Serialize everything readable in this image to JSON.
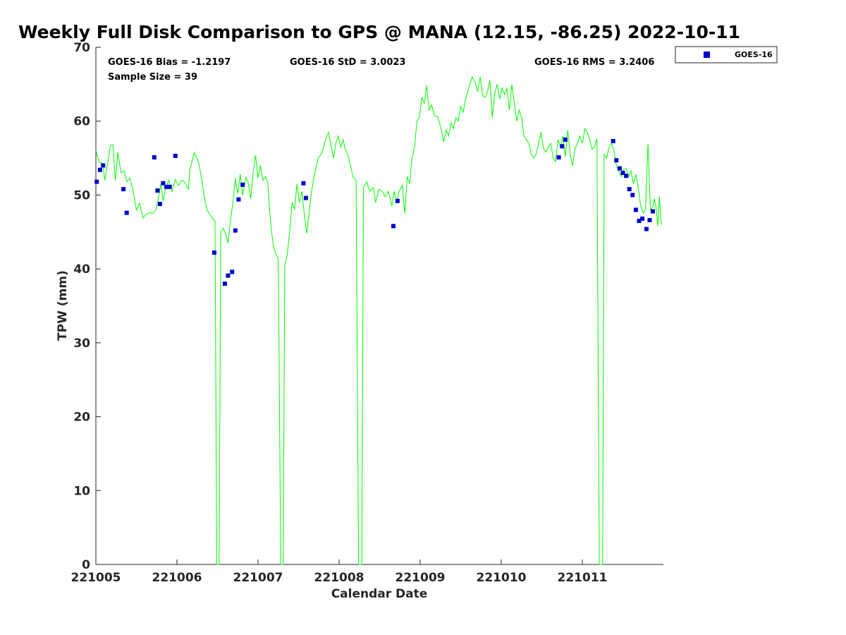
{
  "chart_data": {
    "type": "scatter",
    "title": "Weekly Full Disk Comparison to GPS @ MANA (12.15, -86.25) 2022-10-11",
    "xlabel": "Calendar Date",
    "ylabel": "TPW (mm)",
    "xlim": [
      0,
      7
    ],
    "ylim": [
      0,
      70
    ],
    "x_tick_values": [
      0,
      1,
      2,
      3,
      4,
      5,
      6
    ],
    "x_tick_labels": [
      "221005",
      "221006",
      "221007",
      "221008",
      "221009",
      "221010",
      "221011"
    ],
    "y_ticks": [
      0,
      10,
      20,
      30,
      40,
      50,
      60,
      70
    ],
    "grid": false,
    "legend_position": "outside-top-right",
    "stats": {
      "bias": "GOES-16 Bias = -1.2197",
      "sample": "Sample Size = 39",
      "std": "GOES-16 StD = 3.0023",
      "rms": "GOES-16 RMS = 3.2406"
    },
    "series": [
      {
        "name": "GOES-16",
        "kind": "scatter",
        "color": "#0000cc",
        "marker": "square",
        "points": [
          [
            0.01,
            51.8
          ],
          [
            0.05,
            53.4
          ],
          [
            0.09,
            54.0
          ],
          [
            0.34,
            50.8
          ],
          [
            0.38,
            47.6
          ],
          [
            0.72,
            55.1
          ],
          [
            0.76,
            50.6
          ],
          [
            0.79,
            48.8
          ],
          [
            0.83,
            51.6
          ],
          [
            0.87,
            51.1
          ],
          [
            0.91,
            51.1
          ],
          [
            0.98,
            55.3
          ],
          [
            1.46,
            42.2
          ],
          [
            1.59,
            38.0
          ],
          [
            1.63,
            39.1
          ],
          [
            1.68,
            39.6
          ],
          [
            1.72,
            45.2
          ],
          [
            1.76,
            49.4
          ],
          [
            1.81,
            51.4
          ],
          [
            2.56,
            51.6
          ],
          [
            2.59,
            49.6
          ],
          [
            3.67,
            45.8
          ],
          [
            3.72,
            49.2
          ],
          [
            5.71,
            55.1
          ],
          [
            5.75,
            56.6
          ],
          [
            5.79,
            57.5
          ],
          [
            6.38,
            57.3
          ],
          [
            6.42,
            54.7
          ],
          [
            6.46,
            53.6
          ],
          [
            6.5,
            53.0
          ],
          [
            6.54,
            52.6
          ],
          [
            6.58,
            50.8
          ],
          [
            6.62,
            50.0
          ],
          [
            6.66,
            48.0
          ],
          [
            6.7,
            46.5
          ],
          [
            6.74,
            46.8
          ],
          [
            6.79,
            45.4
          ],
          [
            6.83,
            46.6
          ],
          [
            6.87,
            47.8
          ]
        ]
      },
      {
        "kind": "line",
        "color": "#00ff00",
        "points": [
          [
            0.0,
            56.0
          ],
          [
            0.04,
            54.5
          ],
          [
            0.08,
            54.3
          ],
          [
            0.11,
            52.0
          ],
          [
            0.14,
            54.0
          ],
          [
            0.18,
            56.7
          ],
          [
            0.21,
            56.8
          ],
          [
            0.24,
            52.0
          ],
          [
            0.27,
            55.8
          ],
          [
            0.31,
            53.0
          ],
          [
            0.35,
            53.3
          ],
          [
            0.38,
            51.8
          ],
          [
            0.42,
            52.3
          ],
          [
            0.46,
            50.5
          ],
          [
            0.5,
            48.0
          ],
          [
            0.54,
            48.9
          ],
          [
            0.58,
            46.9
          ],
          [
            0.62,
            47.4
          ],
          [
            0.66,
            47.6
          ],
          [
            0.7,
            47.5
          ],
          [
            0.74,
            48.0
          ],
          [
            0.78,
            50.0
          ],
          [
            0.8,
            51.5
          ],
          [
            0.83,
            49.2
          ],
          [
            0.86,
            51.0
          ],
          [
            0.9,
            52.0
          ],
          [
            0.94,
            50.5
          ],
          [
            0.98,
            52.1
          ],
          [
            1.02,
            51.3
          ],
          [
            1.06,
            52.0
          ],
          [
            1.1,
            51.7
          ],
          [
            1.14,
            50.8
          ],
          [
            1.16,
            53.5
          ],
          [
            1.19,
            54.8
          ],
          [
            1.21,
            55.7
          ],
          [
            1.25,
            55.0
          ],
          [
            1.28,
            53.7
          ],
          [
            1.31,
            51.8
          ],
          [
            1.34,
            49.6
          ],
          [
            1.37,
            48.0
          ],
          [
            1.4,
            47.5
          ],
          [
            1.44,
            46.8
          ],
          [
            1.47,
            46.5
          ],
          [
            1.49,
            0.0
          ],
          [
            1.52,
            0.0
          ],
          [
            1.54,
            45.0
          ],
          [
            1.57,
            45.5
          ],
          [
            1.6,
            44.8
          ],
          [
            1.63,
            43.5
          ],
          [
            1.66,
            46.6
          ],
          [
            1.69,
            49.0
          ],
          [
            1.72,
            52.2
          ],
          [
            1.75,
            50.2
          ],
          [
            1.78,
            52.8
          ],
          [
            1.81,
            50.0
          ],
          [
            1.85,
            52.4
          ],
          [
            1.88,
            51.6
          ],
          [
            1.91,
            49.5
          ],
          [
            1.94,
            53.0
          ],
          [
            1.97,
            55.4
          ],
          [
            2.0,
            52.3
          ],
          [
            2.03,
            54.0
          ],
          [
            2.06,
            52.0
          ],
          [
            2.09,
            52.5
          ],
          [
            2.12,
            51.7
          ],
          [
            2.14,
            48.5
          ],
          [
            2.16,
            45.6
          ],
          [
            2.19,
            43.0
          ],
          [
            2.22,
            42.0
          ],
          [
            2.25,
            41.4
          ],
          [
            2.28,
            0.0
          ],
          [
            2.31,
            0.0
          ],
          [
            2.33,
            40.5
          ],
          [
            2.36,
            42.0
          ],
          [
            2.39,
            45.0
          ],
          [
            2.42,
            49.0
          ],
          [
            2.45,
            48.0
          ],
          [
            2.48,
            51.5
          ],
          [
            2.51,
            49.0
          ],
          [
            2.54,
            50.5
          ],
          [
            2.57,
            47.5
          ],
          [
            2.6,
            44.8
          ],
          [
            2.63,
            47.5
          ],
          [
            2.66,
            50.5
          ],
          [
            2.7,
            53.0
          ],
          [
            2.74,
            55.0
          ],
          [
            2.78,
            55.5
          ],
          [
            2.81,
            56.5
          ],
          [
            2.84,
            57.8
          ],
          [
            2.87,
            58.5
          ],
          [
            2.9,
            56.7
          ],
          [
            2.93,
            55.0
          ],
          [
            2.96,
            57.0
          ],
          [
            2.99,
            58.0
          ],
          [
            3.02,
            56.5
          ],
          [
            3.05,
            57.5
          ],
          [
            3.08,
            56.0
          ],
          [
            3.11,
            55.5
          ],
          [
            3.14,
            54.0
          ],
          [
            3.17,
            52.5
          ],
          [
            3.21,
            52.0
          ],
          [
            3.24,
            0.0
          ],
          [
            3.28,
            0.0
          ],
          [
            3.3,
            51.0
          ],
          [
            3.34,
            51.8
          ],
          [
            3.38,
            50.5
          ],
          [
            3.42,
            51.0
          ],
          [
            3.45,
            49.0
          ],
          [
            3.49,
            50.8
          ],
          [
            3.53,
            50.5
          ],
          [
            3.57,
            49.8
          ],
          [
            3.61,
            50.5
          ],
          [
            3.65,
            48.5
          ],
          [
            3.68,
            50.5
          ],
          [
            3.71,
            49.0
          ],
          [
            3.74,
            50.5
          ],
          [
            3.78,
            51.3
          ],
          [
            3.81,
            47.5
          ],
          [
            3.84,
            52.5
          ],
          [
            3.87,
            51.5
          ],
          [
            3.9,
            55.0
          ],
          [
            3.93,
            56.5
          ],
          [
            3.96,
            60.0
          ],
          [
            3.99,
            60.5
          ],
          [
            4.02,
            63.2
          ],
          [
            4.05,
            62.4
          ],
          [
            4.08,
            64.8
          ],
          [
            4.11,
            61.5
          ],
          [
            4.14,
            62.2
          ],
          [
            4.18,
            60.7
          ],
          [
            4.22,
            60.6
          ],
          [
            4.26,
            58.8
          ],
          [
            4.29,
            57.2
          ],
          [
            4.32,
            58.8
          ],
          [
            4.35,
            58.0
          ],
          [
            4.38,
            59.8
          ],
          [
            4.41,
            59.0
          ],
          [
            4.44,
            60.5
          ],
          [
            4.47,
            60.0
          ],
          [
            4.5,
            62.0
          ],
          [
            4.53,
            61.2
          ],
          [
            4.56,
            63.0
          ],
          [
            4.6,
            64.5
          ],
          [
            4.64,
            66.0
          ],
          [
            4.68,
            65.2
          ],
          [
            4.71,
            64.0
          ],
          [
            4.74,
            66.0
          ],
          [
            4.77,
            63.5
          ],
          [
            4.8,
            63.2
          ],
          [
            4.83,
            64.0
          ],
          [
            4.86,
            65.5
          ],
          [
            4.89,
            60.5
          ],
          [
            4.92,
            63.8
          ],
          [
            4.95,
            65.0
          ],
          [
            4.98,
            63.0
          ],
          [
            5.01,
            64.5
          ],
          [
            5.04,
            63.6
          ],
          [
            5.07,
            64.4
          ],
          [
            5.1,
            61.5
          ],
          [
            5.13,
            65.0
          ],
          [
            5.16,
            62.5
          ],
          [
            5.19,
            60.0
          ],
          [
            5.22,
            61.5
          ],
          [
            5.25,
            60.5
          ],
          [
            5.28,
            58.0
          ],
          [
            5.31,
            57.5
          ],
          [
            5.34,
            57.0
          ],
          [
            5.37,
            55.5
          ],
          [
            5.4,
            55.0
          ],
          [
            5.43,
            55.5
          ],
          [
            5.46,
            57.0
          ],
          [
            5.49,
            58.5
          ],
          [
            5.52,
            56.3
          ],
          [
            5.55,
            55.8
          ],
          [
            5.58,
            56.5
          ],
          [
            5.61,
            57.0
          ],
          [
            5.64,
            55.0
          ],
          [
            5.67,
            54.5
          ],
          [
            5.7,
            57.5
          ],
          [
            5.73,
            56.5
          ],
          [
            5.76,
            58.0
          ],
          [
            5.79,
            55.2
          ],
          [
            5.82,
            58.8
          ],
          [
            5.85,
            55.5
          ],
          [
            5.88,
            54.0
          ],
          [
            5.91,
            56.3
          ],
          [
            5.94,
            57.0
          ],
          [
            5.97,
            58.0
          ],
          [
            6.0,
            57.0
          ],
          [
            6.03,
            59.0
          ],
          [
            6.06,
            58.5
          ],
          [
            6.09,
            57.5
          ],
          [
            6.12,
            56.2
          ],
          [
            6.15,
            56.5
          ],
          [
            6.18,
            57.6
          ],
          [
            6.21,
            0.0
          ],
          [
            6.25,
            0.0
          ],
          [
            6.27,
            55.5
          ],
          [
            6.3,
            55.0
          ],
          [
            6.33,
            56.5
          ],
          [
            6.36,
            57.0
          ],
          [
            6.39,
            56.0
          ],
          [
            6.42,
            54.0
          ],
          [
            6.45,
            53.2
          ],
          [
            6.48,
            52.5
          ],
          [
            6.51,
            53.5
          ],
          [
            6.54,
            53.6
          ],
          [
            6.57,
            52.5
          ],
          [
            6.6,
            53.3
          ],
          [
            6.63,
            51.5
          ],
          [
            6.66,
            52.8
          ],
          [
            6.69,
            51.0
          ],
          [
            6.72,
            48.5
          ],
          [
            6.75,
            47.6
          ],
          [
            6.78,
            48.0
          ],
          [
            6.81,
            57.0
          ],
          [
            6.84,
            47.8
          ],
          [
            6.87,
            48.5
          ],
          [
            6.89,
            49.5
          ],
          [
            6.91,
            48.2
          ],
          [
            6.93,
            45.8
          ],
          [
            6.95,
            49.8
          ],
          [
            6.97,
            46.5
          ],
          [
            6.98,
            46.0
          ]
        ]
      }
    ]
  }
}
